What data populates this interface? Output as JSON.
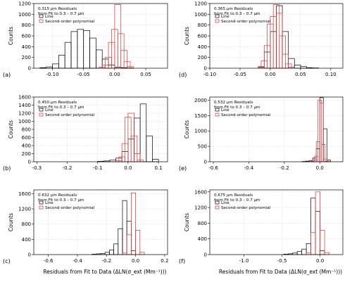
{
  "chart_data": [
    {
      "type": "bar",
      "panel_label": "(a)",
      "annotation": [
        "0.315 µm Residuals",
        "from Fit to 0.3 – 0.7 µm"
      ],
      "legend": [
        "Line",
        "Second-order polynomial"
      ],
      "ylabel": "Counts",
      "xlabel": "",
      "xlim": [
        -0.13,
        0.085
      ],
      "ylim": [
        0,
        1200
      ],
      "xticks": [
        -0.1,
        -0.05,
        0.0,
        0.05
      ],
      "xtick_labels": [
        "-0.10",
        "-0.05",
        "0.00",
        "0.05"
      ],
      "yticks": [
        0,
        200,
        400,
        600,
        800,
        1000,
        1200
      ],
      "ytick_labels": [
        "0",
        "200",
        "400",
        "600",
        "800",
        "1000",
        "1200"
      ],
      "bin_width": 0.01,
      "series": [
        {
          "name": "Line",
          "color": "#000000",
          "bin_starts": [
            -0.12,
            -0.11,
            -0.1,
            -0.09,
            -0.08,
            -0.07,
            -0.06,
            -0.05,
            -0.04,
            -0.03,
            -0.02,
            -0.01,
            0.0,
            0.01,
            0.02
          ],
          "values": [
            10,
            25,
            80,
            240,
            480,
            680,
            720,
            700,
            560,
            340,
            170,
            60,
            20,
            10,
            5
          ]
        },
        {
          "name": "Second-order polynomial",
          "color": "#e03030",
          "bin_starts": [
            -0.025,
            -0.02,
            -0.015,
            -0.01,
            -0.005,
            0.0,
            0.005,
            0.01,
            0.015,
            0.02
          ],
          "values": [
            20,
            60,
            200,
            480,
            720,
            1180,
            640,
            330,
            120,
            30
          ]
        }
      ]
    },
    {
      "type": "bar",
      "panel_label": "(d)",
      "annotation": [
        "0.365 µm Residuals",
        "from Fit to 0.3 – 0.7 µm"
      ],
      "legend": [
        "Line",
        "Second-order polynomial"
      ],
      "ylabel": "Counts",
      "xlabel": "",
      "xlim": [
        -0.1,
        0.12
      ],
      "ylim": [
        0,
        1200
      ],
      "xticks": [
        -0.1,
        -0.05,
        0.0,
        0.05,
        0.1
      ],
      "xtick_labels": [
        "-0.10",
        "-0.05",
        "0.00",
        "0.05",
        "0.10"
      ],
      "yticks": [
        0,
        200,
        400,
        600,
        800,
        1000,
        1200
      ],
      "ytick_labels": [
        "0",
        "200",
        "400",
        "600",
        "800",
        "1000",
        "1200"
      ],
      "bin_width": 0.01,
      "series": [
        {
          "name": "Line",
          "color": "#000000",
          "bin_starts": [
            -0.02,
            -0.01,
            0.0,
            0.01,
            0.02,
            0.03,
            0.04,
            0.05,
            0.06,
            0.07
          ],
          "values": [
            20,
            300,
            680,
            1160,
            680,
            180,
            60,
            30,
            10,
            5
          ]
        },
        {
          "name": "Second-order polynomial",
          "color": "#e03030",
          "bin_starts": [
            -0.02,
            -0.015,
            -0.01,
            -0.005,
            0.0,
            0.005,
            0.01,
            0.015,
            0.02,
            0.025,
            0.03
          ],
          "values": [
            30,
            140,
            420,
            820,
            960,
            1180,
            1020,
            600,
            260,
            80,
            20
          ]
        }
      ]
    },
    {
      "type": "bar",
      "panel_label": "(b)",
      "annotation": [
        "0.450 µm Residuals",
        "from Fit to 0.3 – 0.7 µm"
      ],
      "legend": [
        "Line",
        "Second-order polynomial"
      ],
      "ylabel": "Counts",
      "xlabel": "",
      "xlim": [
        -0.31,
        0.13
      ],
      "ylim": [
        0,
        1600
      ],
      "xticks": [
        -0.3,
        -0.2,
        -0.1,
        0.0,
        0.1
      ],
      "xtick_labels": [
        "-0.3",
        "-0.2",
        "-0.1",
        "0.0",
        "0.1"
      ],
      "yticks": [
        0,
        200,
        400,
        600,
        800,
        1000,
        1200,
        1400,
        1600
      ],
      "ytick_labels": [
        "0",
        "200",
        "400",
        "600",
        "800",
        "1000",
        "1200",
        "1400",
        "1600"
      ],
      "bin_width": 0.02,
      "series": [
        {
          "name": "Line",
          "color": "#000000",
          "bin_starts": [
            -0.1,
            -0.08,
            -0.06,
            -0.04,
            -0.02,
            0.0,
            0.02,
            0.04,
            0.06,
            0.08
          ],
          "values": [
            10,
            20,
            40,
            90,
            250,
            560,
            1080,
            1430,
            640,
            60
          ]
        },
        {
          "name": "Second-order polynomial",
          "color": "#e03030",
          "bin_starts": [
            -0.04,
            -0.03,
            -0.02,
            -0.01,
            0.0,
            0.01,
            0.02,
            0.03
          ],
          "values": [
            30,
            120,
            450,
            1100,
            1200,
            640,
            200,
            40
          ]
        }
      ]
    },
    {
      "type": "bar",
      "panel_label": "(e)",
      "annotation": [
        "0.532 µm Residuals",
        "from Fit to 0.3 – 0.7 µm"
      ],
      "legend": [
        "Line",
        "Second-order polynomial"
      ],
      "ylabel": "Counts",
      "xlabel": "",
      "xlim": [
        -0.62,
        0.13
      ],
      "ylim": [
        0,
        2100
      ],
      "xticks": [
        -0.6,
        -0.4,
        -0.2,
        0.0
      ],
      "xtick_labels": [
        "-0.6",
        "-0.4",
        "-0.2",
        "0.0"
      ],
      "yticks": [
        0,
        500,
        1000,
        1500,
        2000
      ],
      "ytick_labels": [
        "0",
        "500",
        "1000",
        "1500",
        "2000"
      ],
      "bin_width": 0.02,
      "series": [
        {
          "name": "Line",
          "color": "#000000",
          "bin_starts": [
            -0.1,
            -0.08,
            -0.06,
            -0.04,
            -0.02,
            0.0,
            0.02,
            0.04
          ],
          "values": [
            10,
            20,
            40,
            120,
            420,
            2080,
            1070,
            60
          ]
        },
        {
          "name": "Second-order polynomial",
          "color": "#e03030",
          "bin_starts": [
            -0.05,
            -0.04,
            -0.03,
            -0.02,
            -0.01,
            0.0,
            0.01,
            0.02,
            0.03
          ],
          "values": [
            20,
            60,
            180,
            650,
            2000,
            1900,
            560,
            90,
            20
          ]
        }
      ]
    },
    {
      "type": "bar",
      "panel_label": "(c)",
      "annotation": [
        "0.632 µm Residuals",
        "from Fit to 0.3 – 0.7 µm"
      ],
      "legend": [
        "Line",
        "Second-order polynomial"
      ],
      "ylabel": "Counts",
      "xlabel": "Residuals from Fit to Data (ΔLN(σ_ext (Mm⁻¹)))",
      "xlim": [
        -0.7,
        0.22
      ],
      "ylim": [
        0,
        1700
      ],
      "xticks": [
        -0.6,
        -0.4,
        -0.2,
        0.0,
        0.2
      ],
      "xtick_labels": [
        "-0.6",
        "-0.4",
        "-0.2",
        "0.0",
        "0.2"
      ],
      "yticks": [
        0,
        400,
        800,
        1200,
        1600
      ],
      "ytick_labels": [
        "0",
        "400",
        "800",
        "1200",
        "1600"
      ],
      "bin_width": 0.03,
      "series": [
        {
          "name": "Line",
          "color": "#000000",
          "bin_starts": [
            -0.3,
            -0.27,
            -0.24,
            -0.21,
            -0.18,
            -0.15,
            -0.12,
            -0.09,
            -0.06,
            -0.03
          ],
          "values": [
            10,
            20,
            30,
            60,
            120,
            280,
            680,
            1420,
            880,
            100
          ]
        },
        {
          "name": "Second-order polynomial",
          "color": "#e03030",
          "bin_starts": [
            -0.09,
            -0.06,
            -0.03,
            0.0,
            0.03
          ],
          "values": [
            40,
            520,
            1620,
            640,
            60
          ]
        }
      ]
    },
    {
      "type": "bar",
      "panel_label": "(f)",
      "annotation": [
        "0.675 µm Residuals",
        "from Fit to 0.3 – 0.7 µm"
      ],
      "legend": [
        "Line",
        "Second-order polynomial"
      ],
      "ylabel": "Counts",
      "xlabel": "Residuals from Fit to Data (ΔLN(σ_ext (Mm⁻¹)))",
      "xlim": [
        -1.45,
        0.3
      ],
      "ylim": [
        0,
        1650
      ],
      "xticks": [
        -1.0,
        -0.5,
        0.0
      ],
      "xtick_labels": [
        "-1.0",
        "-0.5",
        "0.0"
      ],
      "yticks": [
        0,
        400,
        800,
        1200,
        1600
      ],
      "ytick_labels": [
        "0",
        "400",
        "800",
        "1200",
        "1600"
      ],
      "bin_width": 0.06,
      "series": [
        {
          "name": "Line",
          "color": "#000000",
          "bin_starts": [
            -0.48,
            -0.42,
            -0.36,
            -0.3,
            -0.24,
            -0.18,
            -0.12,
            -0.06,
            0.0
          ],
          "values": [
            10,
            20,
            40,
            80,
            140,
            280,
            1440,
            1100,
            100
          ]
        },
        {
          "name": "Second-order polynomial",
          "color": "#e03030",
          "bin_starts": [
            -0.18,
            -0.12,
            -0.06,
            0.0,
            0.06
          ],
          "values": [
            50,
            560,
            1600,
            620,
            50
          ]
        }
      ]
    }
  ]
}
